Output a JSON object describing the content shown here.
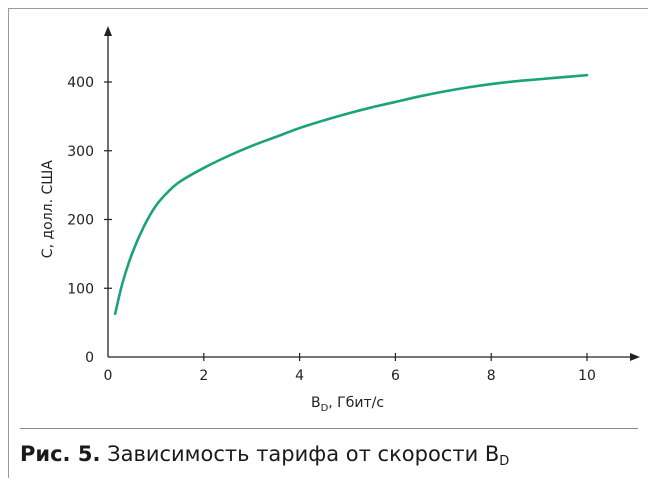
{
  "figure": {
    "caption_label": "Рис. 5.",
    "caption_text": "Зависимость тарифа от скорости B",
    "caption_subscript": "D"
  },
  "chart_data": {
    "type": "line",
    "title": "",
    "xlabel": "B",
    "xlabel_subscript": "D",
    "xlabel_suffix": ", Гбит/с",
    "ylabel": "C, долл. США",
    "xlim": [
      0,
      10
    ],
    "ylim": [
      0,
      450
    ],
    "x_ticks": [
      0,
      2,
      4,
      6,
      8,
      10
    ],
    "x_tick_labels": [
      "0",
      "2",
      "4",
      "6",
      "8",
      "10"
    ],
    "y_ticks": [
      0,
      100,
      200,
      300,
      400
    ],
    "y_tick_labels": [
      "0",
      "100",
      "200",
      "300",
      "400"
    ],
    "grid": false,
    "line_color": "#1aa37a",
    "series": [
      {
        "x": [
          0.15,
          0.3,
          0.5,
          0.75,
          1.0,
          1.25,
          1.5,
          2.0,
          2.5,
          3.0,
          3.5,
          4.0,
          4.5,
          5.0,
          5.5,
          6.0,
          6.5,
          7.0,
          7.5,
          8.0,
          8.5,
          9.0,
          9.5,
          10.0
        ],
        "y": [
          63,
          107,
          150,
          190,
          220,
          240,
          255,
          275,
          292,
          307,
          320,
          333,
          344,
          354,
          363,
          371,
          379,
          386,
          392,
          397,
          401,
          404,
          407,
          410
        ]
      }
    ]
  }
}
